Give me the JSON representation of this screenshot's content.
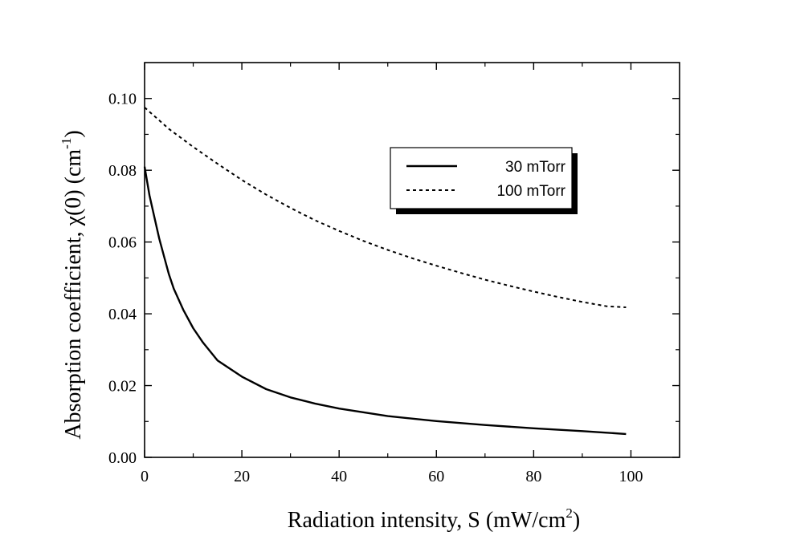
{
  "chart_data": {
    "type": "line",
    "title": "",
    "xlabel": "Radiation intensity, S (mW/cm",
    "xlabel_sup": "2",
    "xlabel_end": ")",
    "ylabel": "Absorption coefficient, χ(0) (cm",
    "ylabel_sup": "-1",
    "ylabel_end": ")",
    "xlim": [
      0,
      110
    ],
    "ylim": [
      0,
      0.11
    ],
    "xticks": [
      "0",
      "20",
      "40",
      "60",
      "80",
      "100"
    ],
    "yticks": [
      "0.00",
      "0.02",
      "0.04",
      "0.06",
      "0.08",
      "0.10"
    ],
    "legend_position": "top-right",
    "series": [
      {
        "name": "30 mTorr",
        "style": "solid",
        "x": [
          0,
          1,
          2,
          3,
          4,
          5,
          6,
          8,
          10,
          12,
          15,
          20,
          25,
          30,
          35,
          40,
          50,
          60,
          70,
          80,
          90,
          99
        ],
        "y": [
          0.081,
          0.073,
          0.067,
          0.061,
          0.056,
          0.051,
          0.047,
          0.041,
          0.036,
          0.032,
          0.027,
          0.0225,
          0.019,
          0.0167,
          0.015,
          0.0136,
          0.0115,
          0.0101,
          0.009,
          0.0081,
          0.0073,
          0.0065
        ]
      },
      {
        "name": "100 mTorr",
        "style": "dashed",
        "x": [
          0,
          5,
          10,
          15,
          20,
          25,
          30,
          35,
          40,
          45,
          50,
          55,
          60,
          65,
          70,
          75,
          80,
          85,
          90,
          95,
          99
        ],
        "y": [
          0.0975,
          0.0915,
          0.0865,
          0.0818,
          0.0773,
          0.0732,
          0.0695,
          0.0661,
          0.0631,
          0.0603,
          0.0578,
          0.0555,
          0.0534,
          0.0514,
          0.0495,
          0.0478,
          0.0462,
          0.0447,
          0.0433,
          0.0421,
          0.0418
        ]
      }
    ]
  }
}
